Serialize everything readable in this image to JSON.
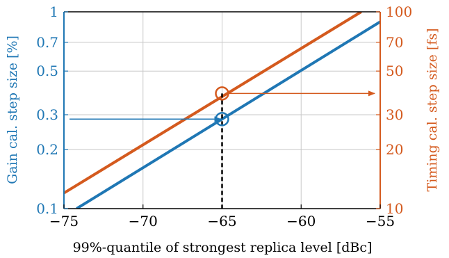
{
  "chart_data": {
    "type": "line",
    "xlabel": "99%-quantile of strongest replica level [dBc]",
    "ylabel_left": "Gain cal. step size [%]",
    "ylabel_right": "Timing cal. step size [fs]",
    "xlim": [
      -75,
      -55
    ],
    "ylim_left": [
      0.1,
      1
    ],
    "ylim_right": [
      10,
      100
    ],
    "yscale": "log",
    "grid": true,
    "xticks": [
      -75,
      -70,
      -65,
      -60,
      -55
    ],
    "xtick_labels": [
      "−75",
      "−70",
      "−65",
      "−60",
      "−55"
    ],
    "yticks_left": [
      0.1,
      0.2,
      0.3,
      0.5,
      0.7,
      1
    ],
    "ytick_labels_left": [
      "0.1",
      "0.2",
      "0.3",
      "0.5",
      "0.7",
      "1"
    ],
    "yticks_right": [
      10,
      20,
      30,
      50,
      70,
      100
    ],
    "ytick_labels_right": [
      "10",
      "20",
      "30",
      "50",
      "70",
      "100"
    ],
    "series": [
      {
        "axis": "left",
        "color": "#1f77b4",
        "x": [
          -74.2,
          -55
        ],
        "y": [
          0.1,
          0.89
        ]
      },
      {
        "axis": "right",
        "color": "#d45a1e",
        "x": [
          -75,
          -56.2
        ],
        "y": [
          12,
          100
        ]
      }
    ],
    "annotations": [
      {
        "type": "marker-circle",
        "axis": "left",
        "x": -65,
        "y": 0.285,
        "color": "#1f77b4"
      },
      {
        "type": "marker-circle",
        "axis": "right",
        "x": -65,
        "y": 38.5,
        "color": "#d45a1e"
      },
      {
        "type": "arrow",
        "axis": "left",
        "from_x": -65,
        "to_x": -75,
        "y": 0.285,
        "color": "#1f77b4"
      },
      {
        "type": "arrow",
        "axis": "right",
        "from_x": -65,
        "to_x": -55,
        "y": 38.5,
        "color": "#d45a1e"
      },
      {
        "type": "dashed-vline",
        "x": -65,
        "from_axis": "right",
        "from_y": 38.5,
        "to_y_left": 0.1,
        "color": "#000000"
      }
    ]
  }
}
